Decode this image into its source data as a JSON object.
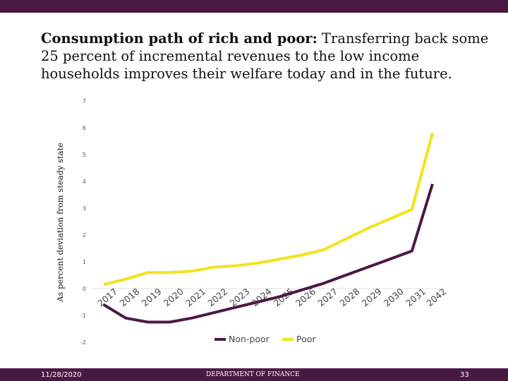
{
  "header": {
    "title_bold": "Consumption path of rich and poor:",
    "title_rest": " Transferring back some 25 percent of incremental revenues to the low income households improves their welfare today and in the future."
  },
  "colors": {
    "bar": "#4a1942",
    "non_poor": "#4a1942",
    "poor": "#f5e21c"
  },
  "chart_data": {
    "type": "line",
    "title": "",
    "xlabel": "",
    "ylabel": "As percent deviation from steady state",
    "ylim": [
      -2,
      7
    ],
    "yticks": [
      -2,
      -1,
      0,
      1,
      2,
      3,
      4,
      5,
      6,
      7
    ],
    "grid": false,
    "legend_position": "bottom",
    "categories": [
      "2017",
      "2018",
      "2019",
      "2020",
      "2021",
      "2022",
      "2023",
      "2024",
      "2025",
      "2026",
      "2027",
      "2028",
      "2029",
      "2030",
      "2031",
      "2042"
    ],
    "series": [
      {
        "name": "Non-poor",
        "color": "#4a1942",
        "values": [
          -0.6,
          -1.1,
          -1.25,
          -1.25,
          -1.1,
          -0.9,
          -0.7,
          -0.5,
          -0.3,
          -0.05,
          0.2,
          0.5,
          0.8,
          1.1,
          1.4,
          3.9
        ]
      },
      {
        "name": "Poor",
        "color": "#f5e21c",
        "values": [
          0.15,
          0.35,
          0.6,
          0.6,
          0.65,
          0.8,
          0.85,
          0.95,
          1.1,
          1.25,
          1.45,
          1.85,
          2.25,
          2.6,
          2.95,
          5.8
        ]
      }
    ]
  },
  "footer": {
    "date": "11/28/2020",
    "department": "DEPARTMENT OF FINANCE",
    "page": "33"
  }
}
